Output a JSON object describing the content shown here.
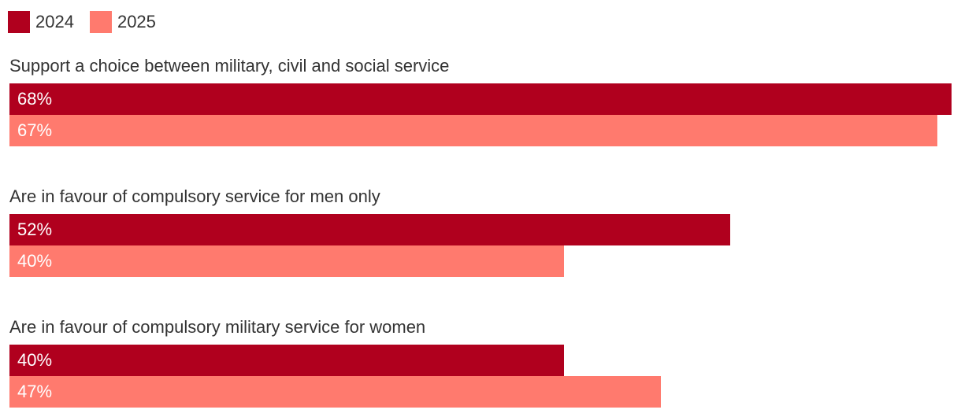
{
  "legend": [
    {
      "label": "2024",
      "color": "#B0001E"
    },
    {
      "label": "2025",
      "color": "#FF7A6E"
    }
  ],
  "chart_data": {
    "type": "bar",
    "orientation": "horizontal",
    "categories": [
      "Support a choice between military, civil and social service",
      "Are in favour of compulsory service for men only",
      "Are in favour of compulsory military service for women"
    ],
    "series": [
      {
        "name": "2024",
        "color": "#B0001E",
        "values": [
          68,
          52,
          40
        ],
        "labels": [
          "68%",
          "52%",
          "40%"
        ]
      },
      {
        "name": "2025",
        "color": "#FF7A6E",
        "values": [
          67,
          40,
          47
        ],
        "labels": [
          "67%",
          "40%",
          "47%"
        ]
      }
    ],
    "xlim": [
      0,
      68
    ],
    "grid": false,
    "legend_position": "top-left"
  }
}
